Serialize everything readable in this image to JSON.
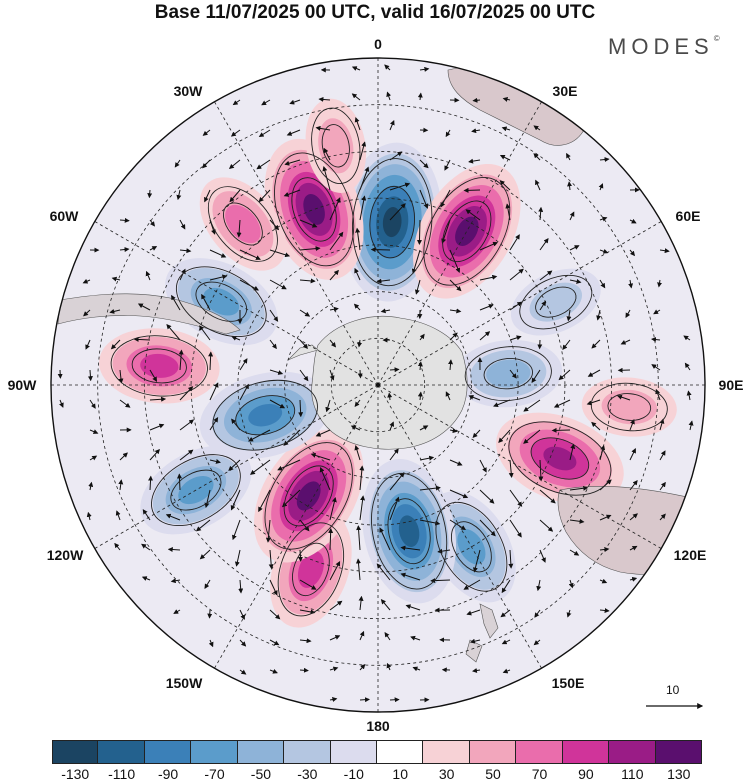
{
  "title": "Base 11/07/2025 00 UTC, valid 16/07/2025 00 UTC",
  "brand": {
    "name": "MODES",
    "mark": "©"
  },
  "longitude_labels": {
    "lon_0": "0",
    "lon_30e": "30E",
    "lon_60e": "60E",
    "lon_90e": "90E",
    "lon_120e": "120E",
    "lon_150e": "150E",
    "lon_180": "180",
    "lon_150w": "150W",
    "lon_120w": "120W",
    "lon_90w": "90W",
    "lon_60w": "60W",
    "lon_30w": "30W"
  },
  "reference_vector": {
    "label": "10"
  },
  "colorbar": {
    "ticks": [
      "-130",
      "-110",
      "-90",
      "-70",
      "-50",
      "-30",
      "-10",
      "10",
      "30",
      "50",
      "70",
      "90",
      "110",
      "130"
    ],
    "colors": [
      "#1b4462",
      "#23618e",
      "#3b80b8",
      "#5b9ccb",
      "#8eb3d8",
      "#b4c6e1",
      "#dcdcee",
      "#ffffff",
      "#f7d2d6",
      "#f2a6bc",
      "#ea6dac",
      "#d0349a",
      "#9a1c86",
      "#5a0f6e"
    ]
  },
  "anomaly_centers": [
    {
      "lon": 5,
      "lat": -55,
      "value": -130
    },
    {
      "lon": 30,
      "lat": -52,
      "value": 110
    },
    {
      "lon": -20,
      "lat": -50,
      "value": 110
    },
    {
      "lon": -40,
      "lat": -45,
      "value": 50
    },
    {
      "lon": 65,
      "lat": -48,
      "value": -30
    },
    {
      "lon": 85,
      "lat": -62,
      "value": -50
    },
    {
      "lon": 112,
      "lat": -48,
      "value": 90
    },
    {
      "lon": 150,
      "lat": -50,
      "value": -70
    },
    {
      "lon": 168,
      "lat": -58,
      "value": -110
    },
    {
      "lon": -160,
      "lat": -48,
      "value": 70
    },
    {
      "lon": -148,
      "lat": -62,
      "value": 110
    },
    {
      "lon": -120,
      "lat": -45,
      "value": -70
    },
    {
      "lon": -105,
      "lat": -65,
      "value": -90
    },
    {
      "lon": -85,
      "lat": -43,
      "value": 70
    },
    {
      "lon": -62,
      "lat": -52,
      "value": -70
    },
    {
      "lon": -10,
      "lat": -38,
      "value": 30
    },
    {
      "lon": 95,
      "lat": -36,
      "value": 30
    }
  ]
}
